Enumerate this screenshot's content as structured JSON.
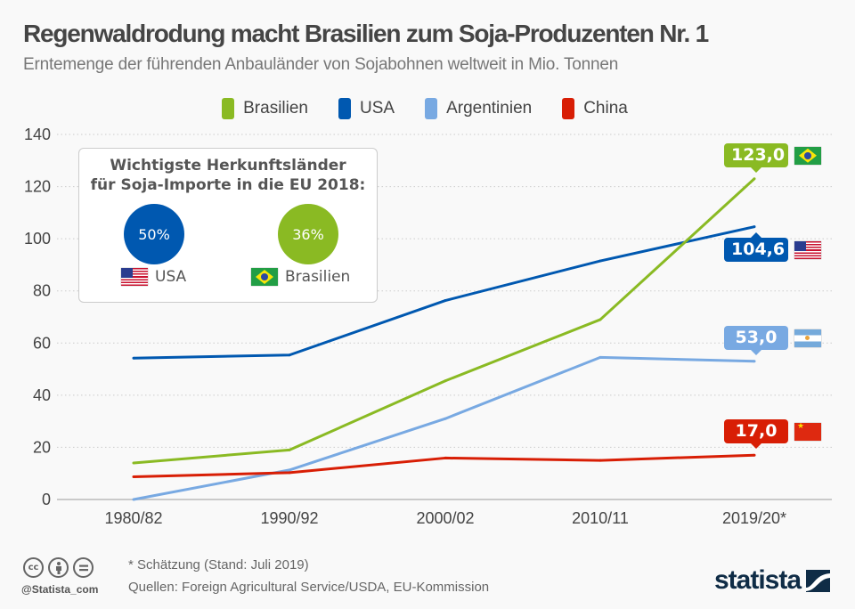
{
  "header": {
    "title": "Regenwaldrodung macht Brasilien zum Soja-Produzenten Nr. 1",
    "subtitle": "Erntemenge der führenden Anbauländer von Sojabohnen weltweit in Mio. Tonnen"
  },
  "colors": {
    "brasilien": "#8aba23",
    "usa": "#0058b0",
    "argentinien": "#78a9e2",
    "china": "#d81e05",
    "logo": "#0f2c46"
  },
  "chart_data": {
    "type": "line",
    "title": "Regenwaldrodung macht Brasilien zum Soja-Produzenten Nr. 1",
    "subtitle": "Erntemenge der führenden Anbauländer von Sojabohnen weltweit in Mio. Tonnen",
    "xlabel": "",
    "ylabel": "",
    "categories": [
      "1980/82",
      "1990/92",
      "2000/02",
      "2010/11",
      "2019/20*"
    ],
    "yticks": [
      0,
      20,
      40,
      60,
      80,
      100,
      120,
      140
    ],
    "ylim": [
      0,
      140
    ],
    "grid": true,
    "legend": "top-center",
    "series": [
      {
        "name": "Brasilien",
        "key": "brasilien",
        "color": "#8aba23",
        "values": [
          14.0,
          19.0,
          45.5,
          69.0,
          123.0
        ],
        "end_label": "123,0",
        "label_pos": "above"
      },
      {
        "name": "USA",
        "key": "usa",
        "color": "#0058b0",
        "values": [
          54.2,
          55.4,
          76.3,
          91.5,
          104.6
        ],
        "end_label": "104,6",
        "label_pos": "below"
      },
      {
        "name": "Argentinien",
        "key": "argentinien",
        "color": "#78a9e2",
        "values": [
          0.0,
          11.3,
          31.0,
          54.5,
          53.0
        ],
        "end_label": "53,0",
        "label_pos": "above"
      },
      {
        "name": "China",
        "key": "china",
        "color": "#d81e05",
        "values": [
          8.7,
          10.3,
          15.9,
          15.0,
          17.0
        ],
        "end_label": "17,0",
        "label_pos": "above"
      }
    ]
  },
  "inset": {
    "title_line1": "Wichtigste Herkunftsländer",
    "title_line2": "für Soja-Importe in die EU 2018:",
    "items": [
      {
        "country": "USA",
        "share": "50%",
        "flag": "us-flag-icon"
      },
      {
        "country": "Brasilien",
        "share": "36%",
        "flag": "brazil-flag-icon"
      }
    ]
  },
  "footer": {
    "handle": "@Statista_com",
    "note": "* Schätzung (Stand: Juli 2019)",
    "source": "Quellen: Foreign Agricultural Service/USDA, EU-Kommission",
    "logo_text": "statista",
    "license_icons": [
      "cc-icon",
      "by-icon",
      "nd-icon"
    ]
  }
}
